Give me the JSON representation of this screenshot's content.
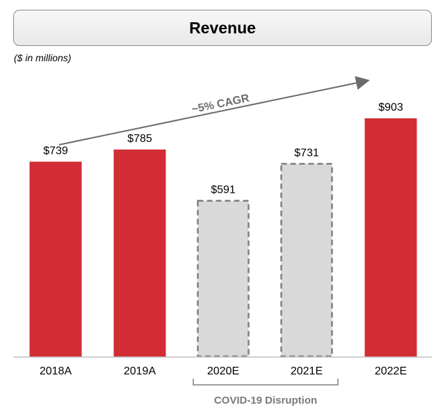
{
  "title": "Revenue",
  "units": "($ in millions)",
  "chart_data": {
    "type": "bar",
    "categories": [
      "2018A",
      "2019A",
      "2020E",
      "2021E",
      "2022E"
    ],
    "values": [
      739,
      785,
      591,
      731,
      903
    ],
    "value_labels": [
      "$739",
      "$785",
      "$591",
      "$731",
      "$903"
    ],
    "styles": [
      "actual",
      "actual",
      "disrupted",
      "disrupted",
      "actual"
    ],
    "ylim": [
      0,
      1000
    ],
    "colors": {
      "actual": "#d22c35",
      "disrupted": "#d9d9d9",
      "disrupted_border": "#7f7f7f",
      "axis": "#bfbfbf"
    },
    "annotations": {
      "trend": "~5% CAGR",
      "bracket": "COVID-19 Disruption"
    },
    "grid": false
  }
}
